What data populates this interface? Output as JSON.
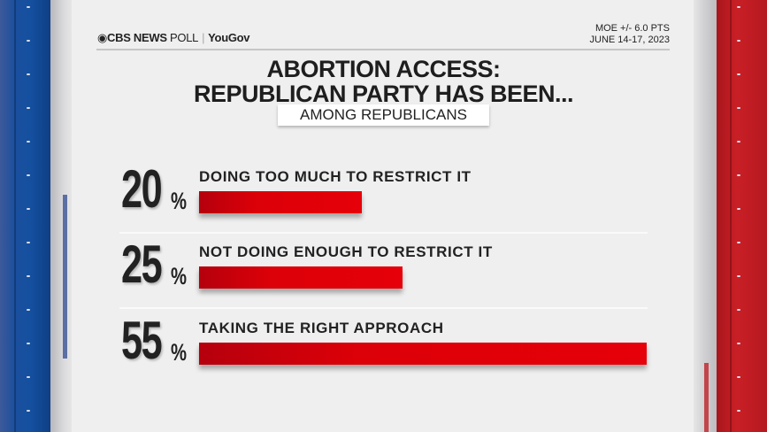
{
  "header": {
    "brand": "CBS NEWS",
    "brand_suffix": "POLL",
    "partner": "YouGov",
    "moe": "MOE +/- 6.0 PTS",
    "dates": "JUNE 14-17, 2023"
  },
  "chart_data": {
    "type": "bar",
    "orientation": "horizontal",
    "title": "ABORTION ACCESS:",
    "title_line2": "REPUBLICAN PARTY HAS BEEN...",
    "subtitle": "AMONG REPUBLICANS",
    "categories": [
      "DOING TOO MUCH TO RESTRICT IT",
      "NOT DOING ENOUGH TO RESTRICT IT",
      "TAKING THE RIGHT APPROACH"
    ],
    "values": [
      20,
      25,
      55
    ],
    "value_labels": [
      "20",
      "25",
      "55"
    ],
    "unit": "%",
    "xlim": [
      0,
      55
    ],
    "colors": {
      "bar": "#e60009",
      "bar_dark": "#b5000d"
    }
  }
}
